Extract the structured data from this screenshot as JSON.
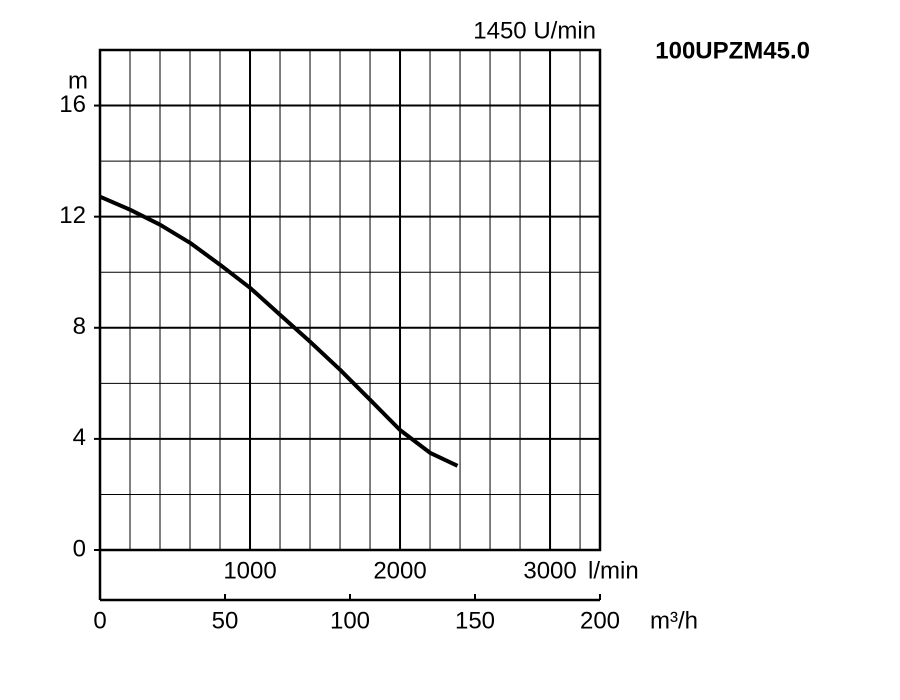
{
  "chart_data": {
    "type": "line",
    "title": "100UPZM45.0",
    "annotation": "1450 U/min",
    "x_label": "m³/h",
    "y_label": "m",
    "x2_label": "l/min",
    "x": [
      0,
      12,
      24,
      36,
      48,
      60,
      72,
      84,
      96,
      108,
      120,
      132,
      143
    ],
    "series": [
      {
        "name": "1450 U/min",
        "color": "#000000",
        "values": [
          12.72,
          12.25,
          11.71,
          11.06,
          10.27,
          9.44,
          8.47,
          7.5,
          6.49,
          5.41,
          4.32,
          3.5,
          3.03
        ]
      }
    ],
    "xlim": [
      0,
      200
    ],
    "xticks": [
      0,
      50,
      100,
      150,
      200
    ],
    "ylim": [
      0,
      18
    ],
    "yticks": [
      0,
      4,
      8,
      12,
      16
    ],
    "y_minor_ticks": [
      2,
      6,
      10,
      14
    ],
    "x2lim": [
      0,
      3333
    ],
    "x2ticks": [
      1000,
      2000,
      3000
    ],
    "x2_minor_ticks": [
      200,
      400,
      600,
      800,
      1200,
      1400,
      1600,
      1800,
      2200,
      2400,
      2600,
      2800,
      3200
    ],
    "grid": true
  }
}
